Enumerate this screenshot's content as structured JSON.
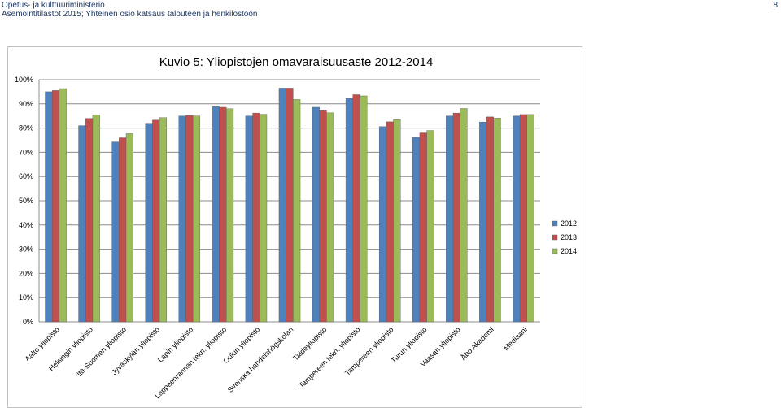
{
  "header": {
    "ministry": "Opetus- ja kulttuuriministeriö",
    "subtitle": "Asemointitilastot 2015; Yhteinen osio katsaus talouteen ja henkilöstöön",
    "page_number": "8"
  },
  "colors": {
    "2012": "#4f81bd",
    "2013": "#c0504d",
    "2014": "#9bbb59",
    "grid": "#8c8c8c"
  },
  "chart_data": {
    "type": "bar",
    "title": "Kuvio 5: Yliopistojen omavaraisuusaste 2012-2014",
    "xlabel": "",
    "ylabel": "",
    "ylim": [
      0,
      100
    ],
    "yticks": [
      "0%",
      "10%",
      "20%",
      "30%",
      "40%",
      "50%",
      "60%",
      "70%",
      "80%",
      "90%",
      "100%"
    ],
    "grid": true,
    "legend_position": "right",
    "categories": [
      "Aalto yliopisto",
      "Helsingin yliopisto",
      "Itä-Suomen yliopisto",
      "Jyväskylän yliopisto",
      "Lapin yliopisto",
      "Lappeenrannan tekn. yliopisto",
      "Oulun yliopisto",
      "Svenska handelshögskolan",
      "Taideyliopisto",
      "Tampereen tekn. yliopisto",
      "Tampereen yliopisto",
      "Turun yliopisto",
      "Vaasan yliopisto",
      "Åbo Akademi",
      "Mediaani"
    ],
    "series": [
      {
        "name": "2012",
        "values": [
          95,
          81,
          74.3,
          82,
          85,
          88.8,
          85,
          96.5,
          88.6,
          92.3,
          80.6,
          76.3,
          85,
          82.5,
          85
        ]
      },
      {
        "name": "2013",
        "values": [
          95.5,
          84,
          76,
          83.3,
          85.2,
          88.6,
          86.2,
          96.5,
          87.5,
          93.8,
          82.6,
          78,
          86.2,
          84.6,
          85.6
        ]
      },
      {
        "name": "2014",
        "values": [
          96.3,
          85.5,
          77.7,
          84.3,
          85,
          88,
          85.7,
          91.8,
          86.3,
          93.3,
          83.5,
          79,
          88.1,
          84.1,
          85.6
        ]
      }
    ]
  }
}
